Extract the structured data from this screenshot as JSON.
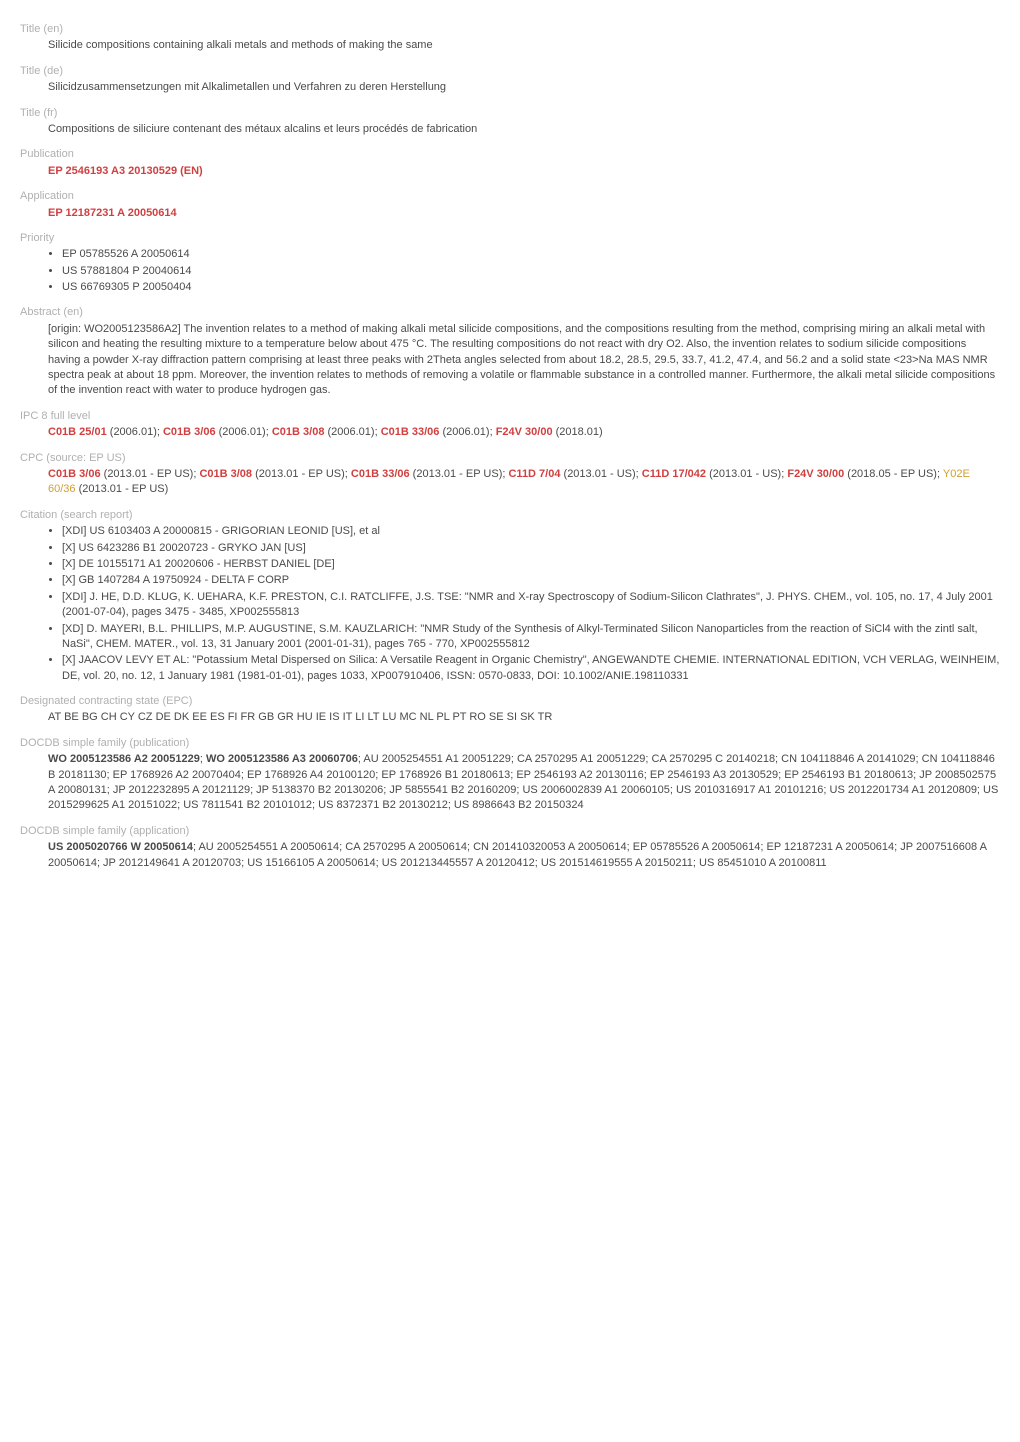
{
  "title_en": {
    "label": "Title (en)",
    "text": "Silicide compositions containing alkali metals and methods of making the same"
  },
  "title_de": {
    "label": "Title (de)",
    "text": "Silicidzusammensetzungen mit Alkalimetallen und Verfahren zu deren Herstellung"
  },
  "title_fr": {
    "label": "Title (fr)",
    "text": "Compositions de siliciure contenant des métaux alcalins et leurs procédés de fabrication"
  },
  "publication": {
    "label": "Publication",
    "link": "EP 2546193 A3 20130529 (EN)"
  },
  "application": {
    "label": "Application",
    "link": "EP 12187231 A 20050614"
  },
  "priority": {
    "label": "Priority",
    "items": [
      "EP 05785526 A 20050614",
      "US 57881804 P 20040614",
      "US 66769305 P 20050404"
    ]
  },
  "abstract": {
    "label": "Abstract (en)",
    "text": "[origin: WO2005123586A2] The invention relates to a method of making alkali metal silicide compositions, and the compositions resulting from the method, comprising miring an alkali metal with silicon and heating the resulting mixture to a temperature below about 475 °C. The resulting compositions do not react with dry O2. Also, the invention relates to sodium silicide compositions having a powder X-ray diffraction pattern comprising at least three peaks with 2Theta angles selected from about 18.2, 28.5, 29.5, 33.7, 41.2, 47.4, and 56.2 and a solid state <23>Na MAS NMR spectra peak at about 18 ppm. Moreover, the invention relates to methods of removing a volatile or flammable substance in a controlled manner. Furthermore, the alkali metal silicide compositions of the invention react with water to produce hydrogen gas."
  },
  "ipc8": {
    "label": "IPC 8 full level",
    "items": [
      {
        "code": "C01B 25/01",
        "ver": " (2006.01); "
      },
      {
        "code": "C01B 3/06",
        "ver": " (2006.01); "
      },
      {
        "code": "C01B 3/08",
        "ver": " (2006.01); "
      },
      {
        "code": "C01B 33/06",
        "ver": " (2006.01); "
      },
      {
        "code": "F24V 30/00",
        "ver": " (2018.01)"
      }
    ]
  },
  "cpc": {
    "label": "CPC (source: EP US)",
    "items": [
      {
        "code": "C01B 3/06",
        "ver": " (2013.01 - EP US); "
      },
      {
        "code": "C01B 3/08",
        "ver": " (2013.01 - EP US); "
      },
      {
        "code": "C01B 33/06",
        "ver": " (2013.01 - EP US); "
      },
      {
        "code": "C11D 7/04",
        "ver": " (2013.01 - US); "
      },
      {
        "code": "C11D 17/042",
        "ver": " (2013.01 - US); "
      },
      {
        "code": "F24V 30/00",
        "ver": " (2018.05 - EP US); "
      }
    ],
    "yellow": {
      "code": "Y02E 60/36",
      "ver": " (2013.01 - EP US)"
    }
  },
  "citation": {
    "label": "Citation (search report)",
    "items": [
      "[XDI] US 6103403 A 20000815 - GRIGORIAN LEONID [US], et al",
      "[X] US 6423286 B1 20020723 - GRYKO JAN [US]",
      "[X] DE 10155171 A1 20020606 - HERBST DANIEL [DE]",
      "[X] GB 1407284 A 19750924 - DELTA F CORP",
      "[XDI] J. HE, D.D. KLUG, K. UEHARA, K.F. PRESTON, C.I. RATCLIFFE, J.S. TSE: \"NMR and X-ray Spectroscopy of Sodium-Silicon Clathrates\", J. PHYS. CHEM., vol. 105, no. 17, 4 July 2001 (2001-07-04), pages 3475 - 3485, XP002555813",
      "[XD] D. MAYERI, B.L. PHILLIPS, M.P. AUGUSTINE, S.M. KAUZLARICH: \"NMR Study of the Synthesis of Alkyl-Terminated Silicon Nanoparticles from the reaction of SiCl4 with the zintl salt, NaSi\", CHEM. MATER., vol. 13, 31 January 2001 (2001-01-31), pages 765 - 770, XP002555812",
      "[X] JAACOV LEVY ET AL: \"Potassium Metal Dispersed on Silica: A Versatile Reagent in Organic Chemistry\", ANGEWANDTE CHEMIE. INTERNATIONAL EDITION, VCH VERLAG, WEINHEIM, DE, vol. 20, no. 12, 1 January 1981 (1981-01-01), pages 1033, XP007910406, ISSN: 0570-0833, DOI: 10.1002/ANIE.198110331"
    ]
  },
  "designated": {
    "label": "Designated contracting state (EPC)",
    "text": "AT BE BG CH CY CZ DE DK EE ES FI FR GB GR HU IE IS IT LI LT LU MC NL PL PT RO SE SI SK TR"
  },
  "docdb_pub": {
    "label": "DOCDB simple family (publication)",
    "bold": "WO 2005123586 A2 20051229",
    "sep1": "; ",
    "bold2": "WO 2005123586 A3 20060706",
    "rest": "; AU 2005254551 A1 20051229; CA 2570295 A1 20051229; CA 2570295 C 20140218; CN 104118846 A 20141029; CN 104118846 B 20181130; EP 1768926 A2 20070404; EP 1768926 A4 20100120; EP 1768926 B1 20180613; EP 2546193 A2 20130116; EP 2546193 A3 20130529; EP 2546193 B1 20180613; JP 2008502575 A 20080131; JP 2012232895 A 20121129; JP 5138370 B2 20130206; JP 5855541 B2 20160209; US 2006002839 A1 20060105; US 2010316917 A1 20101216; US 2012201734 A1 20120809; US 2015299625 A1 20151022; US 7811541 B2 20101012; US 8372371 B2 20130212; US 8986643 B2 20150324"
  },
  "docdb_app": {
    "label": "DOCDB simple family (application)",
    "bold": "US 2005020766 W 20050614",
    "rest": "; AU 2005254551 A 20050614; CA 2570295 A 20050614; CN 201410320053 A 20050614; EP 05785526 A 20050614; EP 12187231 A 20050614; JP 2007516608 A 20050614; JP 2012149641 A 20120703; US 15166105 A 20050614; US 201213445557 A 20120412; US 201514619555 A 20150211; US 85451010 A 20100811"
  }
}
